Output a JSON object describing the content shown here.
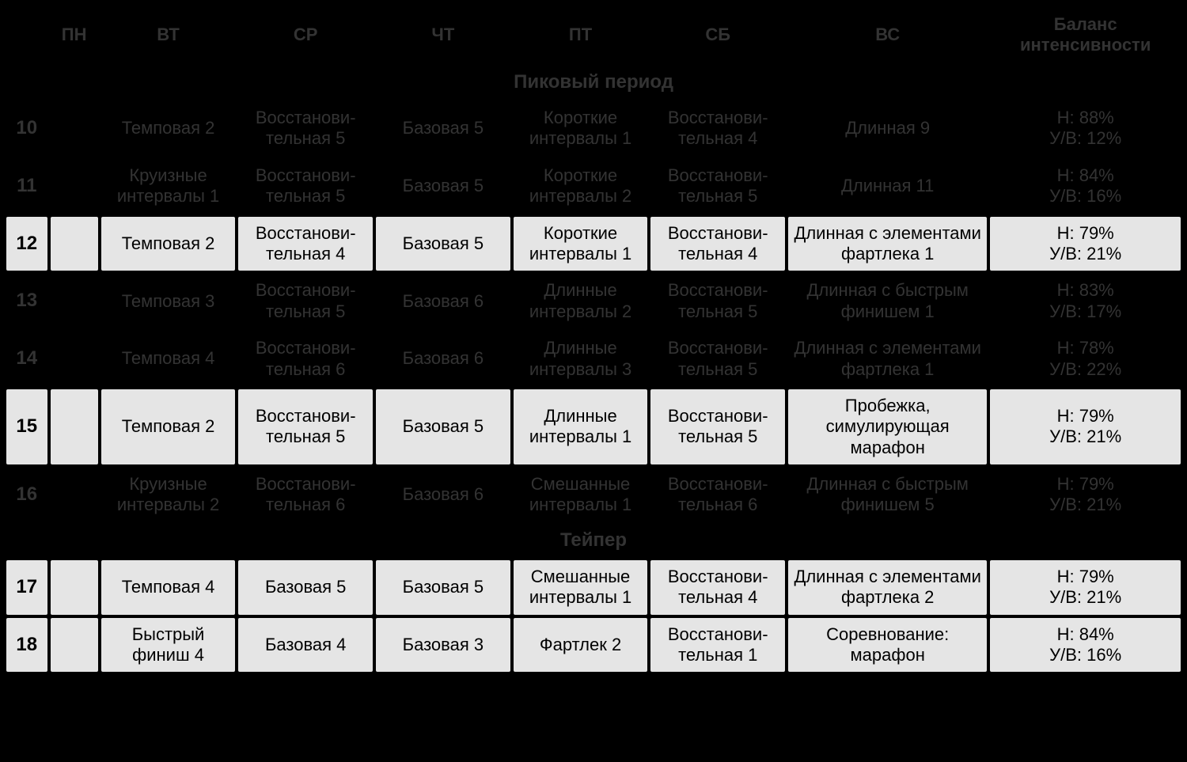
{
  "header": {
    "week": "",
    "mon": "ПН",
    "tue": "ВТ",
    "wed": "СР",
    "thu": "ЧТ",
    "fri": "ПТ",
    "sat": "СБ",
    "sun": "ВС",
    "balance": "Баланс интенсивности"
  },
  "sections": [
    {
      "title": "Пиковый период",
      "rows": [
        {
          "num": "10",
          "shade": "dark",
          "tue": "Темповая 2",
          "wed": "Восстанови­тельная 5",
          "thu": "Базовая 5",
          "fri": "Короткие интервалы 1",
          "sat": "Восстанови­тельная 4",
          "sun": "Длинная 9",
          "bal_n": "Н: 88%",
          "bal_uv": "У/В: 12%"
        },
        {
          "num": "11",
          "shade": "dark",
          "tue": "Круизные интервалы 1",
          "wed": "Восстанови­тельная 5",
          "thu": "Базовая 5",
          "fri": "Короткие интервалы 2",
          "sat": "Восстанови­тельная 5",
          "sun": "Длинная 11",
          "bal_n": "Н: 84%",
          "bal_uv": "У/В: 16%"
        },
        {
          "num": "12",
          "shade": "light",
          "tue": "Темповая 2",
          "wed": "Восстанови­тельная 4",
          "thu": "Базовая 5",
          "fri": "Короткие интервалы 1",
          "sat": "Восстанови­тельная 4",
          "sun": "Длинная с элементами фартлека 1",
          "bal_n": "Н: 79%",
          "bal_uv": "У/В: 21%"
        },
        {
          "num": "13",
          "shade": "dark",
          "tue": "Темповая 3",
          "wed": "Восстанови­тельная 5",
          "thu": "Базовая 6",
          "fri": "Длинные интервалы 2",
          "sat": "Восстанови­тельная 5",
          "sun": "Длинная с быстрым финишем 1",
          "bal_n": "Н: 83%",
          "bal_uv": "У/В: 17%"
        },
        {
          "num": "14",
          "shade": "dark",
          "tue": "Темповая 4",
          "wed": "Восстанови­тельная 6",
          "thu": "Базовая 6",
          "fri": "Длинные интервалы 3",
          "sat": "Восстанови­тельная 5",
          "sun": "Длинная с элементами фартлека 1",
          "bal_n": "Н: 78%",
          "bal_uv": "У/В: 22%"
        },
        {
          "num": "15",
          "shade": "light",
          "tue": "Темповая 2",
          "wed": "Восстанови­тельная 5",
          "thu": "Базовая 5",
          "fri": "Длинные интервалы 1",
          "sat": "Восстанови­тельная 5",
          "sun": "Пробежка, симулирующая марафон",
          "bal_n": "Н: 79%",
          "bal_uv": "У/В: 21%"
        },
        {
          "num": "16",
          "shade": "dark",
          "tue": "Круизные интервалы 2",
          "wed": "Восстанови­тельная 6",
          "thu": "Базовая 6",
          "fri": "Смешанные интервалы 1",
          "sat": "Восстанови­тельная 6",
          "sun": "Длинная с быст­рым финишем 5",
          "bal_n": "Н: 79%",
          "bal_uv": "У/В: 21%"
        }
      ]
    },
    {
      "title": "Тейпер",
      "rows": [
        {
          "num": "17",
          "shade": "light",
          "tue": "Темповая 4",
          "wed": "Базовая 5",
          "thu": "Базовая 5",
          "fri": "Смешанные интервалы 1",
          "sat": "Восстанови­тельная 4",
          "sun": "Длинная с элементами фартлека 2",
          "bal_n": "Н: 79%",
          "bal_uv": "У/В: 21%"
        },
        {
          "num": "18",
          "shade": "light",
          "tue": "Быстрый финиш 4",
          "wed": "Базовая 4",
          "thu": "Базовая 3",
          "fri": "Фартлек 2",
          "sat": "Восстанови­тельная 1",
          "sun": "Соревнование: марафон",
          "bal_n": "Н: 84%",
          "bal_uv": "У/В: 16%"
        }
      ]
    }
  ],
  "colors": {
    "bg": "#000000",
    "dark_text": "#333333",
    "light_bg": "#e5e5e5",
    "light_text": "#000000"
  }
}
